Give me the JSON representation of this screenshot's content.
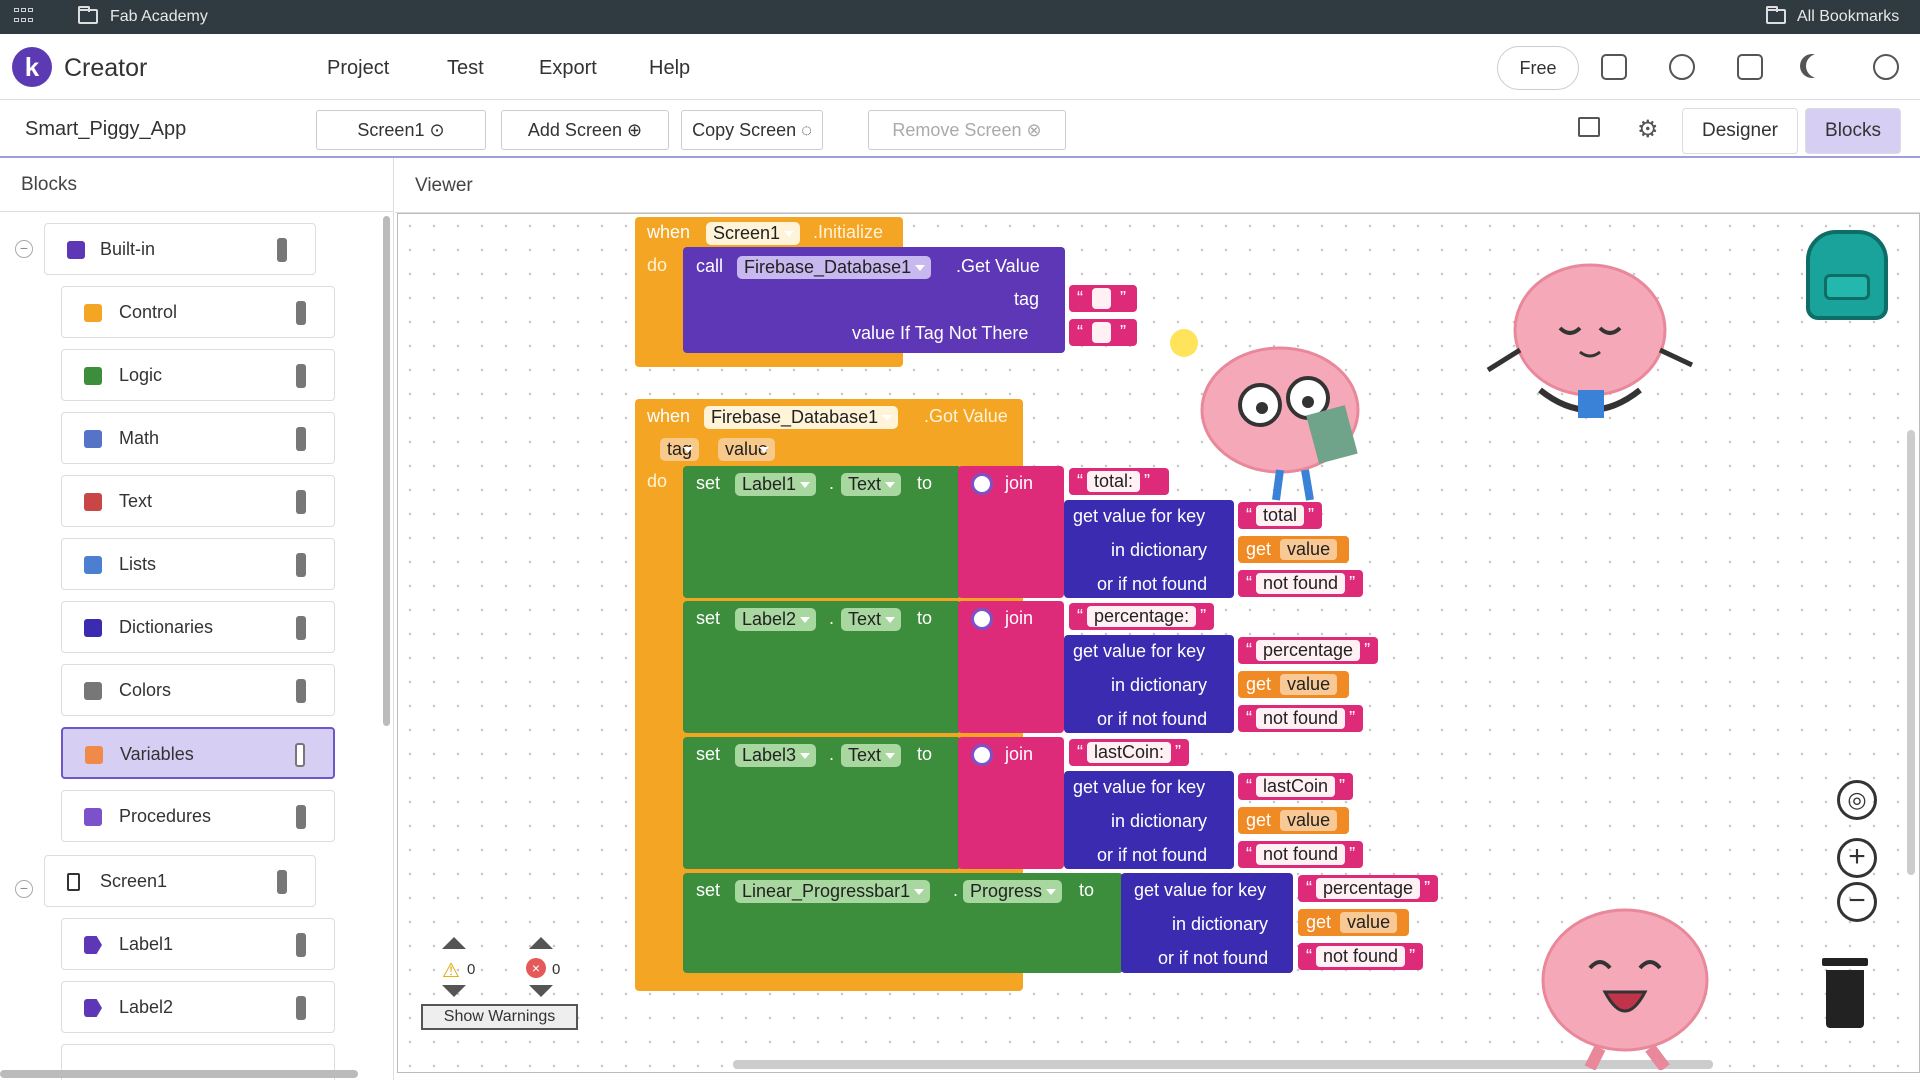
{
  "browser": {
    "folder": "Fab Academy",
    "bookmarks": "All Bookmarks"
  },
  "header": {
    "logo_letter": "k",
    "app_name": "Creator",
    "menu": [
      "Project",
      "Test",
      "Export",
      "Help"
    ],
    "plan_label": "Free"
  },
  "toolbar": {
    "project_name": "Smart_Piggy_App",
    "screen_select": "Screen1",
    "add_screen": "Add Screen",
    "copy_screen": "Copy Screen",
    "remove_screen": "Remove Screen",
    "designer": "Designer",
    "blocks": "Blocks"
  },
  "sidebar": {
    "title": "Blocks",
    "builtin": "Built-in",
    "builtin_items": [
      "Control",
      "Logic",
      "Math",
      "Text",
      "Lists",
      "Dictionaries",
      "Colors",
      "Variables",
      "Procedures"
    ],
    "selected": "Variables",
    "screen": "Screen1",
    "screen_items": [
      "Label1",
      "Label2"
    ]
  },
  "viewer": {
    "title": "Viewer",
    "warnings_count": "0",
    "errors_count": "0",
    "show_warnings": "Show Warnings"
  },
  "blocks": {
    "when": "when",
    "do": "do",
    "call": "call",
    "set": "set",
    "to": "to",
    "join": "join",
    "get": "get",
    "initialize": ".Initialize",
    "screen": "Screen1",
    "db": "Firebase_Database1",
    "get_value": ".Get Value",
    "got_value": ".Got Value",
    "tag": "tag",
    "value": "value",
    "value_if_not": "value If Tag Not There",
    "dot": ".",
    "text_prop": "Text",
    "get_value_for_key": "get value for key",
    "in_dictionary": "in dictionary",
    "or_if_not_found": "or if not found",
    "not_found": "not found",
    "rows": [
      {
        "label": "Label1",
        "prefix": "total: ",
        "key": "total"
      },
      {
        "label": "Label2",
        "prefix": "percentage: ",
        "key": "percentage"
      },
      {
        "label": "Label3",
        "prefix": "lastCoin: ",
        "key": "lastCoin"
      }
    ],
    "progress": {
      "component": "Linear_Progressbar1",
      "prop": "Progress",
      "key": "percentage"
    }
  },
  "colors": {
    "event": "#f4a524",
    "component": "#5d37b5",
    "setter": "#3c8e3c",
    "text": "#dd2b7a",
    "dict": "#3b2bb0",
    "accent": "#5b3ab3"
  }
}
